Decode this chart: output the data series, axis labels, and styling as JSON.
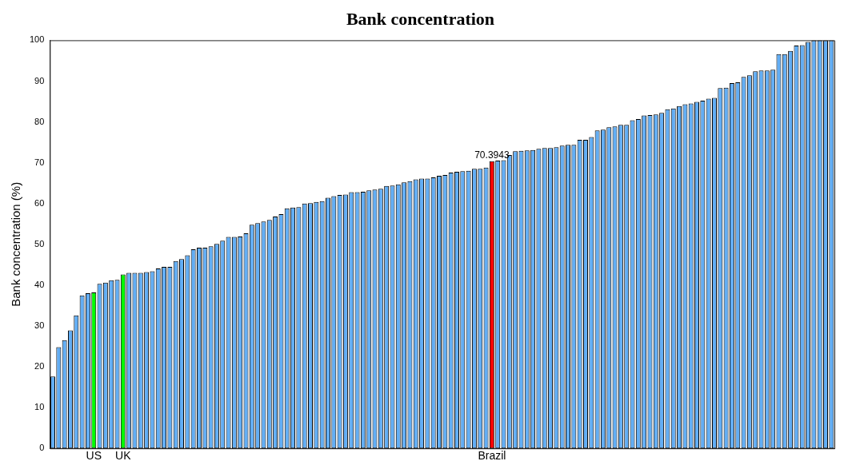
{
  "chart_data": {
    "type": "bar",
    "title": "Bank concentration",
    "ylabel": "Bank concentration (%)",
    "categories": [
      null,
      null,
      null,
      null,
      null,
      null,
      null,
      "US",
      null,
      null,
      null,
      null,
      "UK",
      null,
      null,
      null,
      null,
      null,
      null,
      null,
      null,
      null,
      null,
      null,
      null,
      null,
      null,
      null,
      null,
      null,
      null,
      null,
      null,
      null,
      null,
      null,
      null,
      null,
      null,
      null,
      null,
      null,
      null,
      null,
      null,
      null,
      null,
      null,
      null,
      null,
      null,
      null,
      null,
      null,
      null,
      null,
      null,
      null,
      null,
      null,
      null,
      null,
      null,
      null,
      null,
      null,
      null,
      null,
      null,
      null,
      null,
      null,
      null,
      null,
      null,
      "Brazil",
      null,
      null,
      null,
      null,
      null,
      null,
      null,
      null,
      null,
      null,
      null,
      null,
      null,
      null,
      null,
      null,
      null,
      null,
      null,
      null,
      null,
      null,
      null,
      null,
      null,
      null,
      null,
      null,
      null,
      null,
      null,
      null,
      null,
      null,
      null,
      null,
      null,
      null,
      null,
      null,
      null,
      null,
      null,
      null,
      null,
      null,
      null,
      null,
      null,
      null,
      null,
      null,
      null,
      null,
      null,
      null,
      null,
      null
    ],
    "values": [
      17.6,
      24.8,
      26.5,
      28.9,
      32.6,
      37.5,
      38.0,
      38.2,
      40.3,
      40.6,
      41.2,
      41.3,
      42.6,
      43.0,
      43.0,
      43.0,
      43.2,
      43.4,
      44.1,
      44.5,
      44.5,
      45.9,
      46.4,
      47.3,
      48.8,
      49.2,
      49.2,
      49.5,
      50.1,
      50.9,
      51.8,
      51.8,
      51.9,
      52.7,
      54.8,
      55.2,
      55.6,
      56.0,
      56.8,
      57.4,
      58.8,
      59.0,
      59.1,
      60.0,
      60.1,
      60.4,
      60.6,
      61.4,
      61.8,
      62.1,
      62.2,
      62.8,
      62.8,
      62.9,
      63.2,
      63.4,
      63.6,
      64.3,
      64.4,
      64.7,
      65.2,
      65.5,
      65.9,
      66.1,
      66.1,
      66.4,
      66.8,
      67.0,
      67.6,
      67.8,
      67.9,
      68.0,
      68.5,
      68.5,
      68.8,
      70.3943,
      70.5,
      70.6,
      71.9,
      72.8,
      72.9,
      73.0,
      73.1,
      73.4,
      73.6,
      73.6,
      73.8,
      74.2,
      74.4,
      74.4,
      75.6,
      75.6,
      76.3,
      77.9,
      78.1,
      78.7,
      78.9,
      79.3,
      79.3,
      80.4,
      80.7,
      81.6,
      81.7,
      81.8,
      82.2,
      83.1,
      83.3,
      83.9,
      84.3,
      84.5,
      84.9,
      85.2,
      85.7,
      85.9,
      88.3,
      88.4,
      89.5,
      89.7,
      91.0,
      91.4,
      92.4,
      92.6,
      92.6,
      92.8,
      96.6,
      96.6,
      97.4,
      98.7,
      98.8,
      99.6,
      100,
      100,
      100,
      100
    ],
    "colors": [
      "#62aef5",
      "#62aef5",
      "#62aef5",
      "#62aef5",
      "#62aef5",
      "#62aef5",
      "#62aef5",
      "#00ff00",
      "#62aef5",
      "#62aef5",
      "#62aef5",
      "#62aef5",
      "#00ff00",
      "#62aef5",
      "#62aef5",
      "#62aef5",
      "#62aef5",
      "#62aef5",
      "#62aef5",
      "#62aef5",
      "#62aef5",
      "#62aef5",
      "#62aef5",
      "#62aef5",
      "#62aef5",
      "#62aef5",
      "#62aef5",
      "#62aef5",
      "#62aef5",
      "#62aef5",
      "#62aef5",
      "#62aef5",
      "#62aef5",
      "#62aef5",
      "#62aef5",
      "#62aef5",
      "#62aef5",
      "#62aef5",
      "#62aef5",
      "#62aef5",
      "#62aef5",
      "#62aef5",
      "#62aef5",
      "#62aef5",
      "#62aef5",
      "#62aef5",
      "#62aef5",
      "#62aef5",
      "#62aef5",
      "#62aef5",
      "#62aef5",
      "#62aef5",
      "#62aef5",
      "#62aef5",
      "#62aef5",
      "#62aef5",
      "#62aef5",
      "#62aef5",
      "#62aef5",
      "#62aef5",
      "#62aef5",
      "#62aef5",
      "#62aef5",
      "#62aef5",
      "#62aef5",
      "#62aef5",
      "#62aef5",
      "#62aef5",
      "#62aef5",
      "#62aef5",
      "#62aef5",
      "#62aef5",
      "#62aef5",
      "#62aef5",
      "#62aef5",
      "#ff0000",
      "#62aef5",
      "#62aef5",
      "#62aef5",
      "#62aef5",
      "#62aef5",
      "#62aef5",
      "#62aef5",
      "#62aef5",
      "#62aef5",
      "#62aef5",
      "#62aef5",
      "#62aef5",
      "#62aef5",
      "#62aef5",
      "#62aef5",
      "#62aef5",
      "#62aef5",
      "#62aef5",
      "#62aef5",
      "#62aef5",
      "#62aef5",
      "#62aef5",
      "#62aef5",
      "#62aef5",
      "#62aef5",
      "#62aef5",
      "#62aef5",
      "#62aef5",
      "#62aef5",
      "#62aef5",
      "#62aef5",
      "#62aef5",
      "#62aef5",
      "#62aef5",
      "#62aef5",
      "#62aef5",
      "#62aef5",
      "#62aef5",
      "#62aef5",
      "#62aef5",
      "#62aef5",
      "#62aef5",
      "#62aef5",
      "#62aef5",
      "#62aef5",
      "#62aef5",
      "#62aef5",
      "#62aef5",
      "#62aef5",
      "#62aef5",
      "#62aef5",
      "#62aef5",
      "#62aef5",
      "#62aef5",
      "#62aef5",
      "#62aef5",
      "#62aef5",
      "#62aef5"
    ],
    "value_labels": [
      null,
      null,
      null,
      null,
      null,
      null,
      null,
      null,
      null,
      null,
      null,
      null,
      null,
      null,
      null,
      null,
      null,
      null,
      null,
      null,
      null,
      null,
      null,
      null,
      null,
      null,
      null,
      null,
      null,
      null,
      null,
      null,
      null,
      null,
      null,
      null,
      null,
      null,
      null,
      null,
      null,
      null,
      null,
      null,
      null,
      null,
      null,
      null,
      null,
      null,
      null,
      null,
      null,
      null,
      null,
      null,
      null,
      null,
      null,
      null,
      null,
      null,
      null,
      null,
      null,
      null,
      null,
      null,
      null,
      null,
      null,
      null,
      null,
      null,
      null,
      "70.3943",
      null,
      null,
      null,
      null,
      null,
      null,
      null,
      null,
      null,
      null,
      null,
      null,
      null,
      null,
      null,
      null,
      null,
      null,
      null,
      null,
      null,
      null,
      null,
      null,
      null,
      null,
      null,
      null,
      null,
      null,
      null,
      null,
      null,
      null,
      null,
      null,
      null,
      null,
      null,
      null,
      null,
      null,
      null,
      null,
      null,
      null,
      null,
      null,
      null,
      null,
      null,
      null,
      null,
      null,
      null,
      null,
      null,
      null
    ],
    "ylim": [
      0,
      100
    ],
    "yticks": [
      0,
      10,
      20,
      30,
      40,
      50,
      60,
      70,
      80,
      90,
      100
    ],
    "grid": false,
    "legend": false
  }
}
